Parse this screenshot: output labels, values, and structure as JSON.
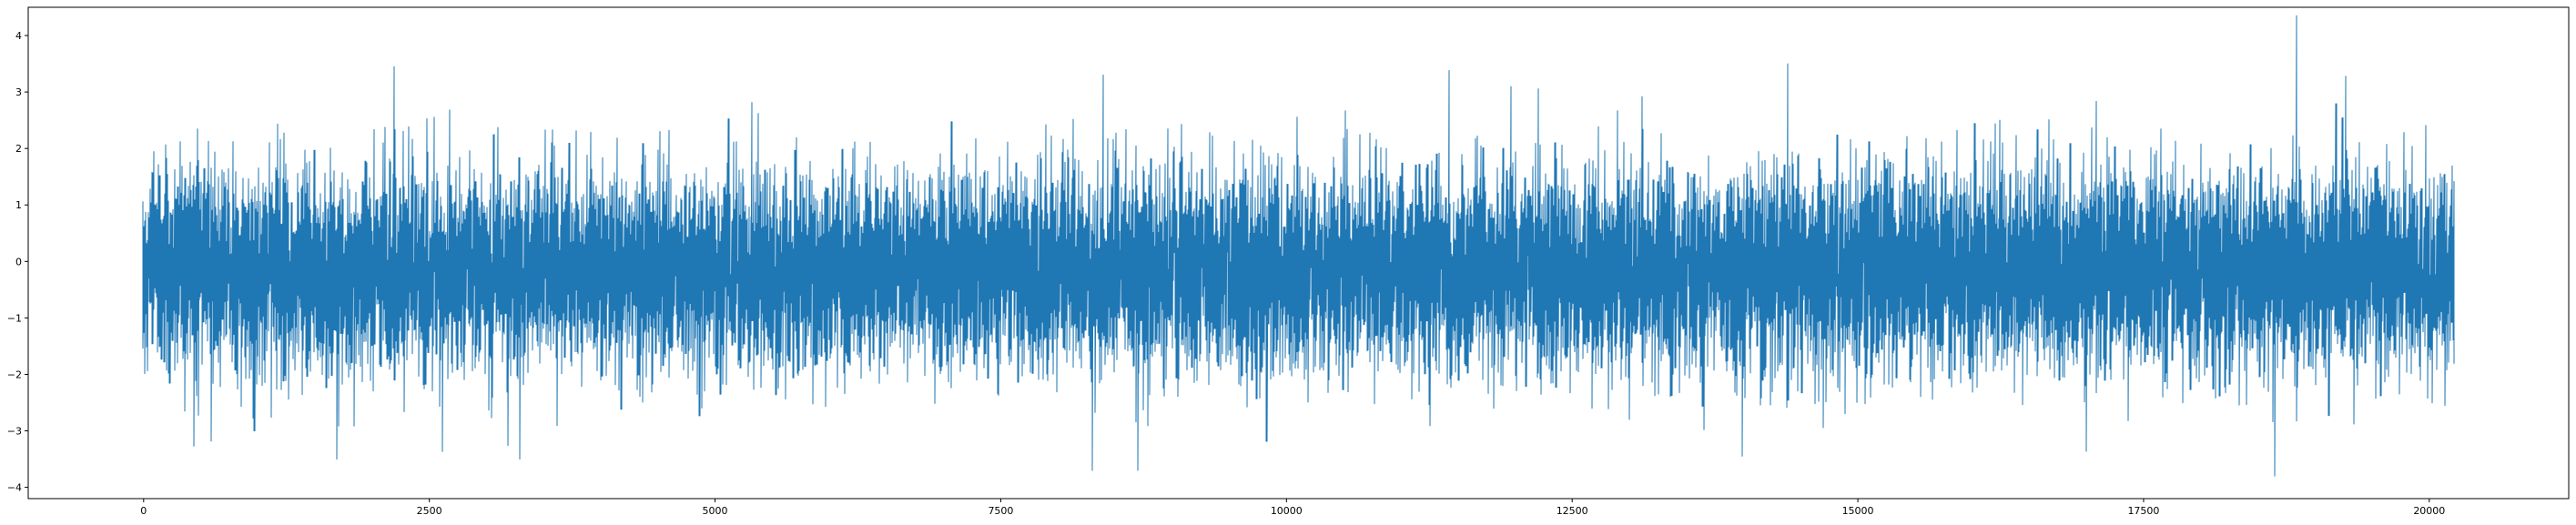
{
  "chart_data": {
    "type": "line",
    "title": "",
    "xlabel": "",
    "ylabel": "",
    "xlim": [
      -1010,
      21220
    ],
    "ylim": [
      -4.2,
      4.5
    ],
    "x_ticks": [
      0,
      2500,
      5000,
      7500,
      10000,
      12500,
      15000,
      17500,
      20000
    ],
    "y_ticks": [
      -4,
      -3,
      -2,
      -1,
      0,
      1,
      2,
      3,
      4
    ],
    "x_tick_labels": [
      "0",
      "2500",
      "5000",
      "7500",
      "10000",
      "12500",
      "15000",
      "17500",
      "20000"
    ],
    "y_tick_labels": [
      "−4",
      "−3",
      "−2",
      "−1",
      "0",
      "1",
      "2",
      "3",
      "4"
    ],
    "grid": false,
    "legend": "none",
    "series": [
      {
        "color": "#1f77b4",
        "n_points": 20210,
        "x_start": 0,
        "x_end": 20210,
        "description_stat": {
          "center": -0.15,
          "typical_low": -1.4,
          "typical_high": 1.1
        },
        "extrema": [
          {
            "x": 18830,
            "y": 4.35
          },
          {
            "x": 14380,
            "y": 3.5
          },
          {
            "x": 2200,
            "y": 3.45
          },
          {
            "x": 11420,
            "y": 3.38
          },
          {
            "x": 8400,
            "y": 3.3
          },
          {
            "x": 19260,
            "y": 3.28
          },
          {
            "x": 18640,
            "y": -3.8
          },
          {
            "x": 8300,
            "y": -3.7
          },
          {
            "x": 8700,
            "y": -3.7
          },
          {
            "x": 1700,
            "y": -3.5
          },
          {
            "x": 3300,
            "y": -3.5
          },
          {
            "x": 13980,
            "y": -3.45
          }
        ]
      }
    ]
  }
}
